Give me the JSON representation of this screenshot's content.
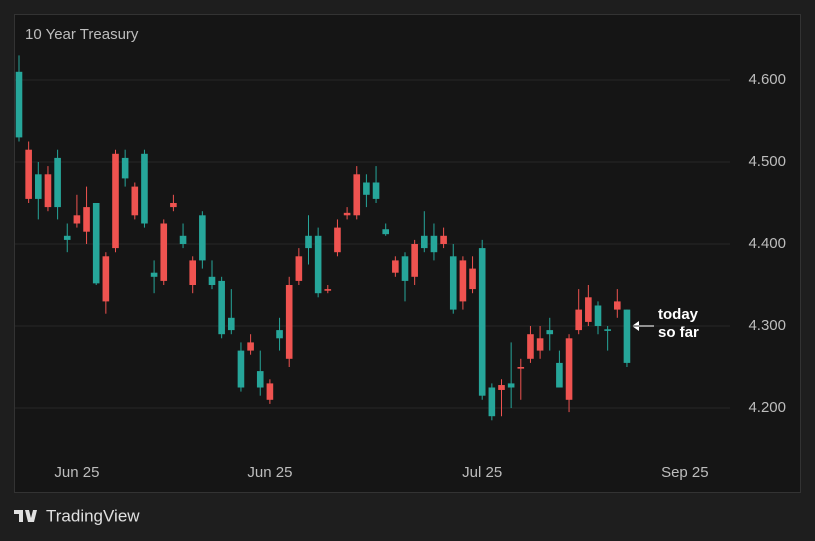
{
  "chart_data": {
    "type": "candlestick",
    "title": "10 Year Treasury",
    "categories": [
      null,
      null,
      null,
      null,
      null,
      null,
      "Jun 25",
      null,
      null,
      null,
      null,
      null,
      null,
      null,
      null,
      null,
      null,
      null,
      null,
      null,
      null,
      null,
      null,
      null,
      null,
      null,
      "Jun 25",
      null,
      null,
      null,
      null,
      null,
      null,
      null,
      null,
      null,
      null,
      null,
      null,
      null,
      null,
      null,
      null,
      null,
      null,
      null,
      null,
      null,
      "Jul 25",
      null,
      null,
      null,
      null,
      null,
      null,
      null,
      null,
      null,
      null,
      null,
      null,
      null,
      null,
      null,
      null,
      null,
      null,
      null,
      null,
      "Sep 25"
    ],
    "open": [
      4.53,
      4.515,
      4.455,
      4.485,
      4.445,
      4.405,
      4.435,
      4.445,
      4.352,
      4.385,
      4.51,
      4.48,
      4.47,
      4.425,
      4.36,
      4.425,
      4.45,
      4.4,
      4.38,
      4.38,
      4.35,
      4.29,
      4.295,
      4.225,
      4.28,
      4.225,
      4.23,
      4.285,
      4.35,
      4.385,
      4.395,
      4.34,
      4.345,
      4.42,
      4.438,
      4.485,
      4.46,
      4.455,
      4.412,
      4.38,
      4.355,
      4.4,
      4.395,
      4.39,
      4.41,
      4.32,
      4.38,
      4.37,
      4.215,
      4.19,
      4.228,
      4.225,
      4.25,
      4.29,
      4.285,
      4.29,
      4.225,
      4.285,
      4.32,
      4.335,
      4.3,
      4.294,
      4.33,
      4.255,
      null,
      null,
      null,
      null,
      null,
      null
    ],
    "high": [
      4.63,
      4.525,
      4.5,
      4.495,
      4.515,
      4.425,
      4.46,
      4.47,
      4.45,
      4.39,
      4.515,
      4.515,
      4.475,
      4.515,
      4.38,
      4.43,
      4.46,
      4.425,
      4.385,
      4.44,
      4.38,
      4.36,
      4.345,
      4.28,
      4.29,
      4.27,
      4.235,
      4.31,
      4.36,
      4.395,
      4.435,
      4.42,
      4.35,
      4.43,
      4.445,
      4.495,
      4.485,
      4.495,
      4.425,
      4.385,
      4.39,
      4.405,
      4.44,
      4.425,
      4.42,
      4.4,
      4.385,
      4.385,
      4.405,
      4.23,
      4.235,
      4.28,
      4.26,
      4.3,
      4.3,
      4.31,
      4.27,
      4.29,
      4.345,
      4.35,
      4.33,
      4.3,
      4.345,
      4.32,
      null,
      null,
      null,
      null,
      null,
      null
    ],
    "low": [
      4.525,
      4.45,
      4.43,
      4.44,
      4.43,
      4.39,
      4.42,
      4.4,
      4.35,
      4.315,
      4.39,
      4.47,
      4.43,
      4.42,
      4.34,
      4.35,
      4.44,
      4.395,
      4.34,
      4.37,
      4.345,
      4.285,
      4.29,
      4.22,
      4.265,
      4.215,
      4.205,
      4.27,
      4.25,
      4.35,
      4.375,
      4.335,
      4.34,
      4.385,
      4.43,
      4.43,
      4.445,
      4.45,
      4.41,
      4.36,
      4.33,
      4.35,
      4.39,
      4.38,
      4.395,
      4.315,
      4.32,
      4.34,
      4.21,
      4.185,
      4.19,
      4.2,
      4.21,
      4.255,
      4.26,
      4.27,
      4.225,
      4.195,
      4.29,
      4.3,
      4.29,
      4.27,
      4.31,
      4.25,
      null,
      null,
      null,
      null,
      null,
      null
    ],
    "close": [
      4.61,
      4.455,
      4.485,
      4.445,
      4.505,
      4.41,
      4.425,
      4.415,
      4.45,
      4.33,
      4.395,
      4.505,
      4.435,
      4.51,
      4.365,
      4.355,
      4.445,
      4.41,
      4.35,
      4.435,
      4.36,
      4.355,
      4.31,
      4.27,
      4.27,
      4.245,
      4.21,
      4.295,
      4.26,
      4.355,
      4.41,
      4.41,
      4.343,
      4.39,
      4.435,
      4.435,
      4.475,
      4.475,
      4.418,
      4.365,
      4.385,
      4.36,
      4.41,
      4.41,
      4.4,
      4.385,
      4.33,
      4.345,
      4.395,
      4.225,
      4.222,
      4.23,
      4.248,
      4.26,
      4.27,
      4.295,
      4.255,
      4.21,
      4.295,
      4.305,
      4.325,
      4.296,
      4.32,
      4.32,
      null,
      null,
      null,
      null,
      null,
      null
    ],
    "up_color": "#26a69a",
    "down_color": "#ef5350",
    "ylim": [
      4.14,
      4.67
    ],
    "yticks": [
      {
        "value": 4.2,
        "label": "4.200"
      },
      {
        "value": 4.3,
        "label": "4.300"
      },
      {
        "value": 4.4,
        "label": "4.400"
      },
      {
        "value": 4.5,
        "label": "4.500"
      },
      {
        "value": 4.6,
        "label": "4.600"
      }
    ],
    "grid": true,
    "annotation": {
      "lines": [
        "today",
        "so far"
      ]
    },
    "branding": "TradingView"
  }
}
